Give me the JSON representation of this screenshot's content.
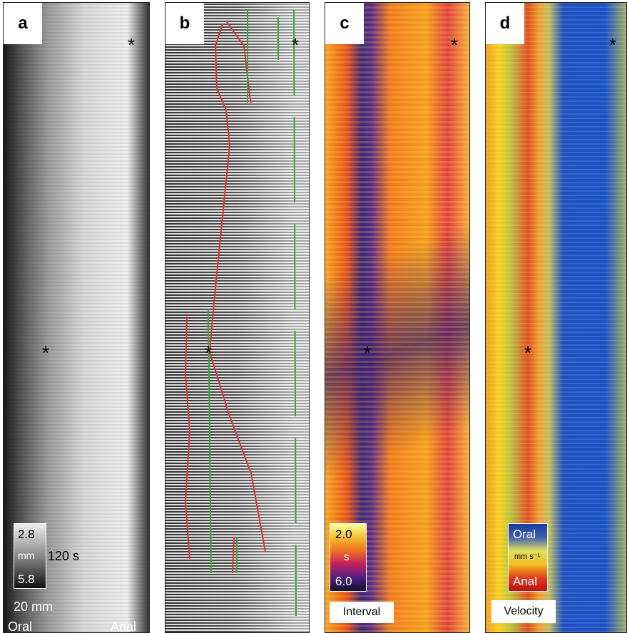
{
  "panels": [
    {
      "label": "a",
      "markers": [
        "*",
        "*"
      ],
      "scale": {
        "top": "2.8",
        "unit": "mm",
        "bottom": "5.8",
        "time": "120 s",
        "length": "20 mm"
      },
      "axis": {
        "left": "Oral",
        "right": "Anal"
      }
    },
    {
      "label": "b",
      "markers": [
        "*",
        "*"
      ]
    },
    {
      "label": "c",
      "markers": [
        "*",
        "*"
      ],
      "colorbar": {
        "top": "2.0",
        "unit": "s",
        "bottom": "6.0"
      },
      "caption": "Interval"
    },
    {
      "label": "d",
      "markers": [
        "*",
        "*"
      ],
      "colorbar": {
        "top": "Oral",
        "unit": "mm s⁻¹",
        "bottom": "Anal"
      },
      "caption": "Velocity"
    }
  ]
}
